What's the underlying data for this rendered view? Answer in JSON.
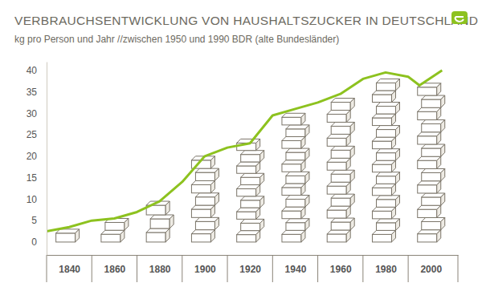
{
  "chart_data": {
    "type": "bar",
    "title": "VERBRAUCHSENTWICKLUNG VON HAUSHALTSZUCKER IN DEUTSCHLAND",
    "subtitle": "kg pro Person und Jahr //zwischen 1950 und 1990 BDR (alte Bundesländer)",
    "xlim": [
      1830,
      2012
    ],
    "xticks": [
      1840,
      1860,
      1880,
      1900,
      1920,
      1940,
      1960,
      1980,
      2000
    ],
    "ylim": [
      -3,
      42
    ],
    "yticks": [
      0,
      5,
      10,
      15,
      20,
      25,
      30,
      35,
      40
    ],
    "series": [
      {
        "type": "bar",
        "color": "#ffffff",
        "x": [
          1840,
          1860,
          1880,
          1900,
          1920,
          1940,
          1960,
          1980,
          2000
        ],
        "values": [
          3,
          5.5,
          9.5,
          20,
          24,
          30,
          33.5,
          38,
          37
        ]
      },
      {
        "type": "line",
        "color": "#8dc21f",
        "x": [
          1830,
          1840,
          1850,
          1860,
          1870,
          1880,
          1890,
          1900,
          1910,
          1920,
          1930,
          1940,
          1950,
          1960,
          1970,
          1980,
          1990,
          1995,
          2005
        ],
        "values": [
          2.5,
          3.5,
          5,
          5.5,
          7,
          9.5,
          14,
          20,
          22,
          23,
          29.5,
          31,
          32.5,
          34.5,
          38,
          39.5,
          38.5,
          36.5,
          40
        ]
      }
    ]
  }
}
